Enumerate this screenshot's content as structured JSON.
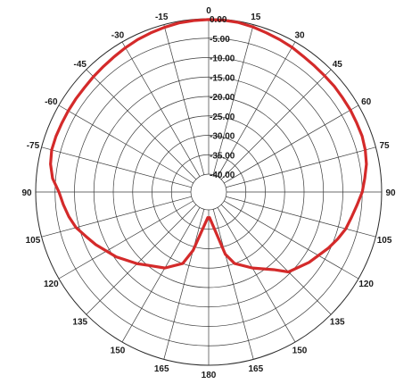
{
  "chart_data": {
    "type": "polar",
    "title": "",
    "angle_ticks": [
      "0",
      "15",
      "30",
      "45",
      "60",
      "75",
      "90",
      "105",
      "120",
      "135",
      "150",
      "165",
      "180",
      "165",
      "150",
      "135",
      "120",
      "105",
      "90",
      "-75",
      "-60",
      "-45",
      "-30",
      "-15"
    ],
    "radial_ticks": [
      "0.00",
      "-5.00",
      "-10.00",
      "-15.00",
      "-20.00",
      "-25.00",
      "-30.00",
      "-35.00",
      "-40.00"
    ],
    "radial_range": [
      -40,
      0
    ],
    "angle_direction": "clockwise, 0 at top",
    "grid": true,
    "series": [
      {
        "color": "#d42a2a",
        "theta": [
          -178,
          -165,
          -160,
          -150,
          -140,
          -135,
          -125,
          -115,
          -110,
          -105,
          -100,
          -95,
          -90,
          -85,
          -80,
          -75,
          -70,
          -65,
          -60,
          -55,
          -50,
          -45,
          -40,
          -35,
          -30,
          -25,
          -20,
          -15,
          -10,
          -5,
          0,
          5,
          10,
          15,
          20,
          25,
          30,
          35,
          40,
          45,
          50,
          55,
          60,
          65,
          70,
          75,
          80,
          85,
          90,
          95,
          100,
          105,
          110,
          115,
          125,
          135,
          140,
          150,
          160,
          165,
          178
        ],
        "r": [
          -38,
          -29,
          -25,
          -22,
          -20,
          -18.5,
          -15.5,
          -12.5,
          -11,
          -9.2,
          -8,
          -7,
          -6,
          -4.2,
          -3.2,
          -2.7,
          -2.7,
          -2.8,
          -2.8,
          -2.8,
          -2.8,
          -2.6,
          -2.4,
          -2.1,
          -1.7,
          -1.3,
          -1.0,
          -0.7,
          -0.4,
          -0.3,
          -0.2,
          -0.2,
          -0.3,
          -0.6,
          -1.0,
          -1.3,
          -1.6,
          -2.0,
          -2.2,
          -2.3,
          -2.3,
          -2.4,
          -2.4,
          -2.5,
          -2.5,
          -2.8,
          -3.3,
          -4.2,
          -5.0,
          -6.2,
          -7.2,
          -8.0,
          -9.2,
          -10.5,
          -13.0,
          -15.5,
          -18.5,
          -22,
          -25,
          -28,
          -38
        ]
      }
    ]
  }
}
